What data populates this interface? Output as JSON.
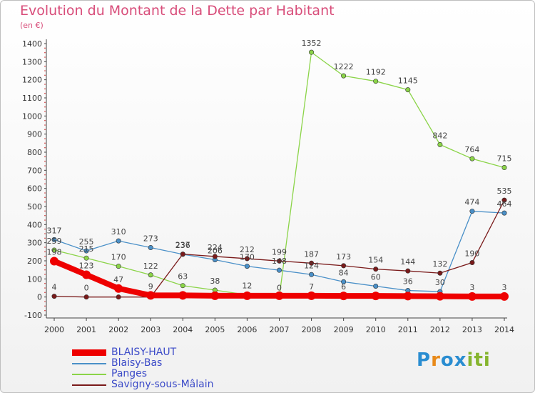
{
  "title": "Evolution du Montant de la Dette par Habitant",
  "subtitle": "(en €)",
  "logo": {
    "text": "Proxiti",
    "letters": [
      "P",
      "r",
      "o",
      "x",
      "i",
      "t",
      "i"
    ],
    "colors": [
      "#2a8dd1",
      "#e88a1a",
      "#2a8dd1",
      "#2a8dd1",
      "#86b52f",
      "#86b52f",
      "#86b52f"
    ]
  },
  "chart_data": {
    "type": "line",
    "title": "Evolution du Montant de la Dette par Habitant",
    "subtitle": "(en €)",
    "x": [
      "2000",
      "2001",
      "2002",
      "2003",
      "2004",
      "2005",
      "2006",
      "2007",
      "2008",
      "2009",
      "2010",
      "2011",
      "2012",
      "2013",
      "2014"
    ],
    "ylim": [
      -100,
      1400
    ],
    "yticks": [
      -100,
      0,
      100,
      200,
      300,
      400,
      500,
      600,
      700,
      800,
      900,
      1000,
      1100,
      1200,
      1300,
      1400
    ],
    "grid": false,
    "legend_position": "bottom-left",
    "series": [
      {
        "name": "BLAISY-HAUT",
        "color": "#ee0000",
        "thick": true,
        "values": [
          198,
          123,
          47,
          9,
          9,
          7,
          7,
          7,
          7,
          6,
          6,
          5,
          4,
          3,
          3
        ],
        "labels": [
          "198",
          "123",
          "47",
          "9",
          "",
          "",
          "",
          "",
          "7",
          "6",
          "",
          "",
          "",
          "3",
          "3"
        ]
      },
      {
        "name": "Blaisy-Bas",
        "color": "#4a90c8",
        "thick": false,
        "values": [
          317,
          255,
          310,
          273,
          236,
          206,
          170,
          148,
          124,
          84,
          60,
          36,
          30,
          474,
          464
        ],
        "labels": [
          "317",
          "255",
          "310",
          "273",
          "236",
          "206",
          "170",
          "148",
          "124",
          "84",
          "60",
          "36",
          "30",
          "474",
          "464"
        ]
      },
      {
        "name": "Panges",
        "color": "#8bd448",
        "thick": false,
        "values": [
          259,
          215,
          170,
          122,
          63,
          38,
          12,
          0,
          1352,
          1222,
          1192,
          1145,
          842,
          764,
          715
        ],
        "labels": [
          "259",
          "215",
          "170",
          "122",
          "63",
          "38",
          "12",
          "0",
          "1352",
          "1222",
          "1192",
          "1145",
          "842",
          "764",
          "715"
        ]
      },
      {
        "name": "Savigny-sous-Mâlain",
        "color": "#7a1a1a",
        "thick": false,
        "values": [
          4,
          0,
          0,
          0,
          237,
          224,
          212,
          199,
          187,
          173,
          154,
          144,
          132,
          190,
          535
        ],
        "labels": [
          "4",
          "0",
          "",
          "",
          "237",
          "224",
          "212",
          "199",
          "187",
          "173",
          "154",
          "144",
          "132",
          "190",
          "535"
        ]
      }
    ]
  }
}
